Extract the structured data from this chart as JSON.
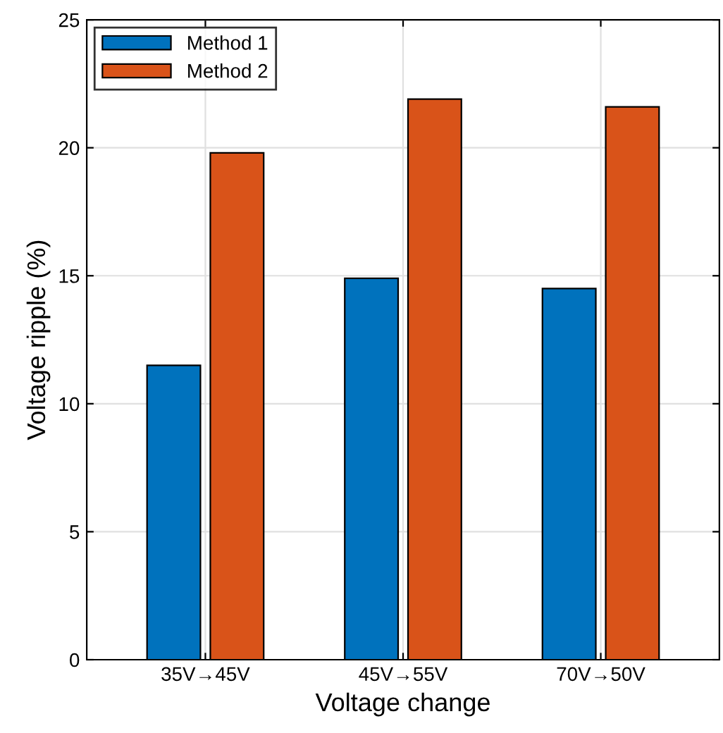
{
  "chart_data": {
    "type": "bar",
    "xlabel": "Voltage change",
    "ylabel": "Voltage ripple (%)",
    "categories": [
      "35V→45V",
      "45V→55V",
      "70V→50V"
    ],
    "series": [
      {
        "name": "Method 1",
        "color": "#0072bd",
        "values": [
          11.5,
          14.9,
          14.5
        ]
      },
      {
        "name": "Method 2",
        "color": "#d95319",
        "values": [
          19.8,
          21.9,
          21.6
        ]
      }
    ],
    "ylim": [
      0,
      25
    ],
    "yticks": [
      0,
      5,
      10,
      15,
      20,
      25
    ],
    "grid": true,
    "legend": "top left"
  }
}
